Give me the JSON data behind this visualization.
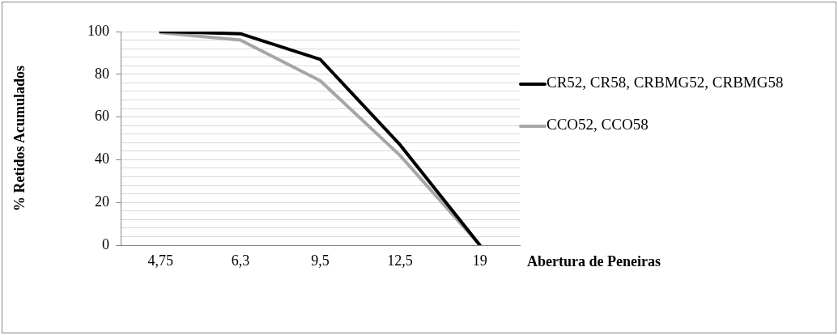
{
  "chart_data": {
    "type": "line",
    "xlabel": "Abertura de Peneiras",
    "ylabel": "% Retidos Acumulados",
    "categories": [
      "4,75",
      "6,3",
      "9,5",
      "12,5",
      "19"
    ],
    "series": [
      {
        "name": "CR52, CR58, CRBMG52, CRBMG58",
        "color": "#000000",
        "values": [
          100,
          99,
          87,
          47,
          0
        ]
      },
      {
        "name": "CCO52, CCO58",
        "color": "#a6a6a6",
        "values": [
          99.5,
          96,
          77,
          42,
          0
        ]
      }
    ],
    "ylim": [
      0,
      100
    ],
    "yticks": [
      0,
      {
        "value": 4,
        "label": null
      },
      {
        "value": 8,
        "label": null
      },
      {
        "value": 12,
        "label": null
      },
      {
        "value": 16,
        "label": null
      },
      20,
      {
        "value": 24,
        "label": null
      },
      {
        "value": 28,
        "label": null
      },
      {
        "value": 32,
        "label": null
      },
      {
        "value": 36,
        "label": null
      },
      40,
      {
        "value": 44,
        "label": null
      },
      {
        "value": 48,
        "label": null
      },
      {
        "value": 52,
        "label": null
      },
      {
        "value": 56,
        "label": null
      },
      60,
      {
        "value": 64,
        "label": null
      },
      {
        "value": 68,
        "label": null
      },
      {
        "value": 72,
        "label": null
      },
      {
        "value": 76,
        "label": null
      },
      80,
      {
        "value": 84,
        "label": null
      },
      {
        "value": 88,
        "label": null
      },
      {
        "value": 92,
        "label": null
      },
      {
        "value": 96,
        "label": null
      },
      100
    ],
    "grid": "y",
    "legend": "right",
    "marker": "none",
    "line_style": "solid"
  }
}
